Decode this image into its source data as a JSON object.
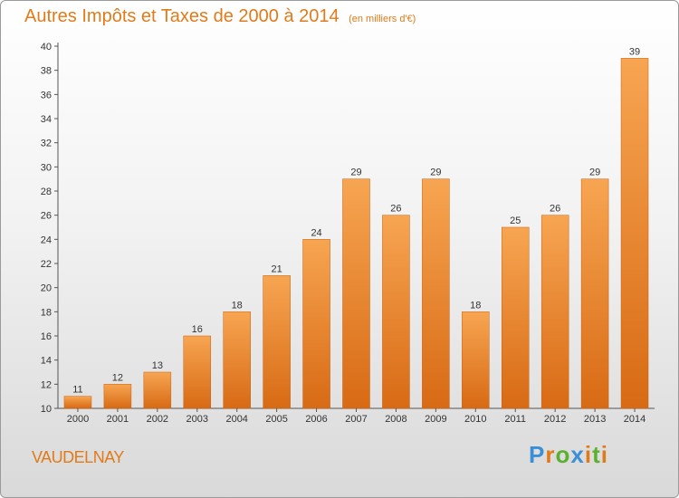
{
  "title": "Autres Impôts et Taxes de 2000 à 2014",
  "subtitle": "(en milliers d'€)",
  "commune": "VAUDELNAY",
  "logo": {
    "letters": [
      "P",
      "r",
      "o",
      "x",
      "i",
      "t",
      "i"
    ]
  },
  "colors": {
    "bar_top": "#f7a552",
    "bar_bottom": "#d86a14",
    "title": "#e07b1a"
  },
  "chart_data": {
    "type": "bar",
    "title": "Autres Impôts et Taxes de 2000 à 2014",
    "subtitle": "(en milliers d'€)",
    "categories": [
      "2000",
      "2001",
      "2002",
      "2003",
      "2004",
      "2005",
      "2006",
      "2007",
      "2008",
      "2009",
      "2010",
      "2011",
      "2012",
      "2013",
      "2014"
    ],
    "values": [
      11,
      12,
      13,
      16,
      18,
      21,
      24,
      29,
      26,
      29,
      18,
      25,
      26,
      29,
      39
    ],
    "ylim": [
      10,
      40
    ],
    "yticks": [
      10,
      12,
      14,
      16,
      18,
      20,
      22,
      24,
      26,
      28,
      30,
      32,
      34,
      36,
      38,
      40
    ],
    "xlabel": "",
    "ylabel": "",
    "grid": false,
    "legend": "none"
  }
}
